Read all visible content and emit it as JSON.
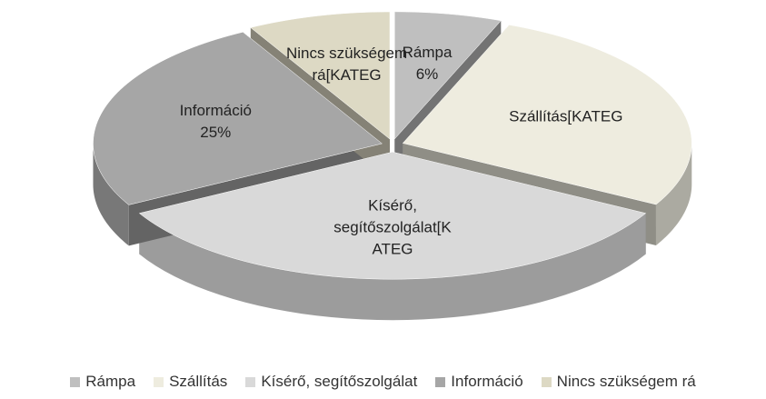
{
  "chart_data": {
    "type": "pie3d",
    "categories": [
      "Rámpa",
      "Szállítás",
      "Kísérő, segítőszolgálat",
      "Információ",
      "Nincs szükségem rá"
    ],
    "values": [
      6,
      27,
      34,
      25,
      8
    ],
    "colors": [
      "#bfbfbf",
      "#eeecdf",
      "#d9d9d9",
      "#a6a6a6",
      "#ddd9c4"
    ],
    "data_labels": [
      [
        "Rámpa",
        "6%"
      ],
      [
        "Szállítás[KATEG"
      ],
      [
        "Kísérő,",
        "segítőszolgálat[K",
        "ATEG"
      ],
      [
        "Információ",
        "25%"
      ],
      [
        "Nincs szükségem",
        "rá[KATEG"
      ]
    ],
    "legend": "bottom"
  }
}
